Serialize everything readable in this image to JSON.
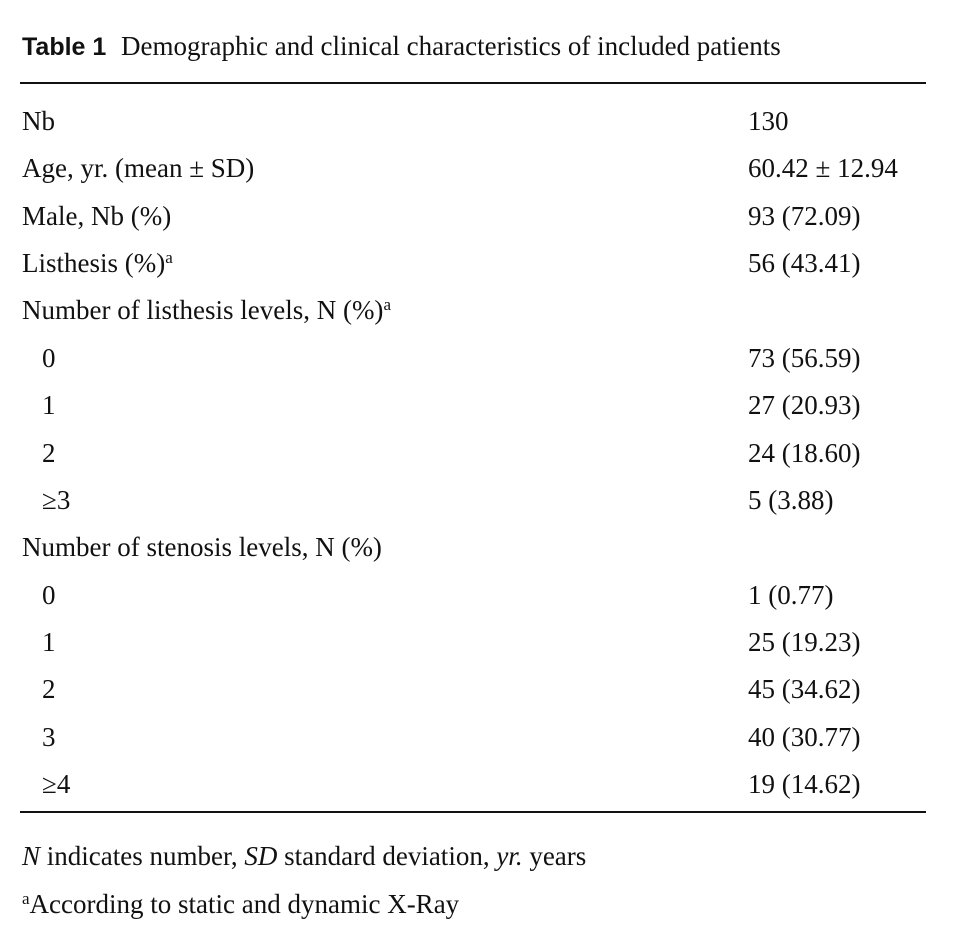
{
  "table": {
    "label": "Table 1",
    "caption": "Demographic and clinical characteristics of included patients",
    "rows": [
      {
        "label": "Nb",
        "value": "130"
      },
      {
        "label": "Age, yr. (mean ± SD)",
        "value": "60.42 ± 12.94"
      },
      {
        "label": "Male, Nb (%)",
        "value": "93 (72.09)"
      },
      {
        "label": "Listhesis (%)",
        "note": "a",
        "value": "56 (43.41)"
      },
      {
        "label": "Number of listhesis levels, N (%)",
        "note": "a",
        "items": [
          {
            "label": "0",
            "value": "73 (56.59)"
          },
          {
            "label": "1",
            "value": "27 (20.93)"
          },
          {
            "label": "2",
            "value": "24 (18.60)"
          },
          {
            "label": "≥3",
            "value": "5 (3.88)"
          }
        ]
      },
      {
        "label": "Number of stenosis levels, N (%)",
        "items": [
          {
            "label": "0",
            "value": "1 (0.77)"
          },
          {
            "label": "1",
            "value": "25 (19.23)"
          },
          {
            "label": "2",
            "value": "45 (34.62)"
          },
          {
            "label": "3",
            "value": "40 (30.77)"
          },
          {
            "label": "≥4",
            "value": "19 (14.62)"
          }
        ]
      }
    ]
  },
  "footnotes": [
    {
      "parts": [
        {
          "text": "N",
          "style": "italic"
        },
        {
          "text": " indicates number, "
        },
        {
          "text": "SD",
          "style": "italic"
        },
        {
          "text": " standard deviation, "
        },
        {
          "text": "yr.",
          "style": "italic"
        },
        {
          "text": " years"
        }
      ]
    },
    {
      "mark": "a",
      "text": "According to static and dynamic X-Ray"
    }
  ]
}
